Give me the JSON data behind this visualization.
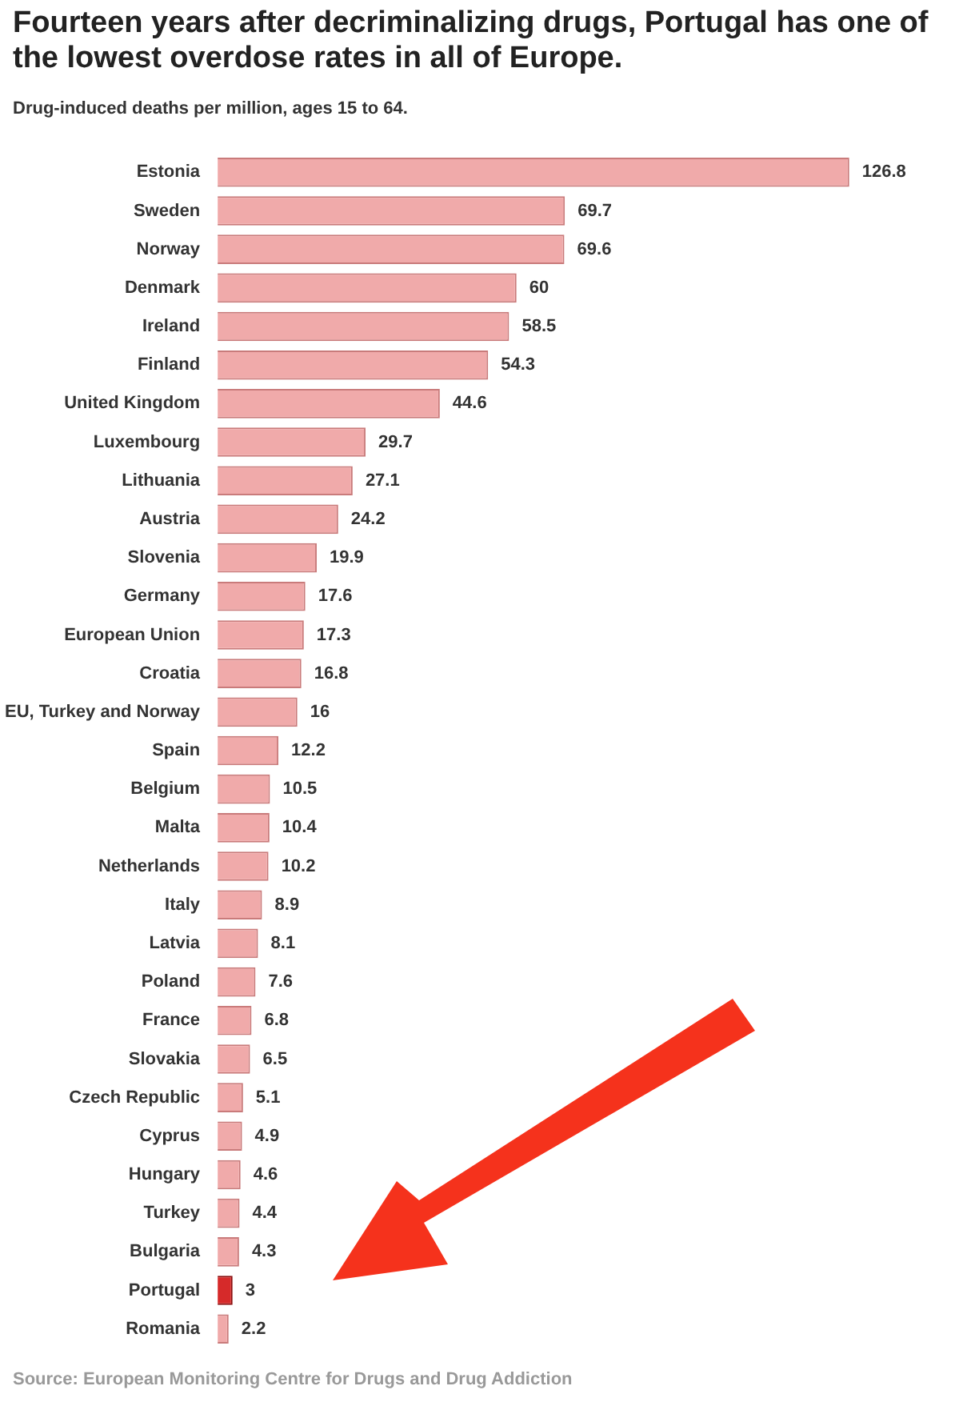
{
  "chart_data": {
    "type": "bar",
    "orientation": "horizontal",
    "title": "Fourteen years after decriminalizing drugs, Portugal has one of the lowest overdose rates in all of Europe.",
    "subtitle": "Drug-induced deaths per million, ages 15 to 64.",
    "categories": [
      "Estonia",
      "Sweden",
      "Norway",
      "Denmark",
      "Ireland",
      "Finland",
      "United Kingdom",
      "Luxembourg",
      "Lithuania",
      "Austria",
      "Slovenia",
      "Germany",
      "European Union",
      "Croatia",
      "EU, Turkey and Norway",
      "Spain",
      "Belgium",
      "Malta",
      "Netherlands",
      "Italy",
      "Latvia",
      "Poland",
      "France",
      "Slovakia",
      "Czech Republic",
      "Cyprus",
      "Hungary",
      "Turkey",
      "Bulgaria",
      "Portugal",
      "Romania"
    ],
    "values": [
      126.8,
      69.7,
      69.6,
      60,
      58.5,
      54.3,
      44.6,
      29.7,
      27.1,
      24.2,
      19.9,
      17.6,
      17.3,
      16.8,
      16,
      12.2,
      10.5,
      10.4,
      10.2,
      8.9,
      8.1,
      7.6,
      6.8,
      6.5,
      5.1,
      4.9,
      4.6,
      4.4,
      4.3,
      3,
      2.2
    ],
    "colors": [
      "#f0aaaa",
      "#f0aaaa",
      "#f0aaaa",
      "#f0aaaa",
      "#f0aaaa",
      "#f0aaaa",
      "#f0aaaa",
      "#f0aaaa",
      "#f0aaaa",
      "#f0aaaa",
      "#f0aaaa",
      "#f0aaaa",
      "#f0aaaa",
      "#f0aaaa",
      "#f0aaaa",
      "#f0aaaa",
      "#f0aaaa",
      "#f0aaaa",
      "#f0aaaa",
      "#f0aaaa",
      "#f0aaaa",
      "#f0aaaa",
      "#f0aaaa",
      "#f0aaaa",
      "#f0aaaa",
      "#f0aaaa",
      "#f0aaaa",
      "#f0aaaa",
      "#f0aaaa",
      "#d62a2a",
      "#f0aaaa"
    ],
    "data_labels": true,
    "grid": false,
    "legend": false,
    "tick_labels": "y",
    "annotations": [
      "Source: European Monitoring Centre for Drugs and Drug Addiction"
    ]
  }
}
